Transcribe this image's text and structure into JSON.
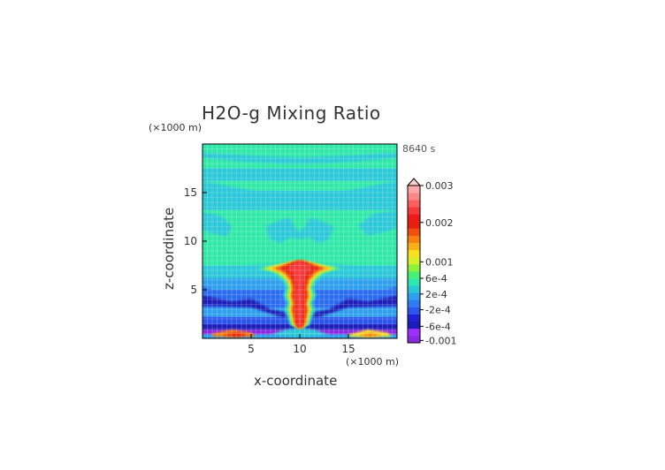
{
  "chart_data": {
    "type": "heatmap",
    "title": "H2O-g Mixing Ratio",
    "xlabel": "x-coordinate",
    "ylabel": "z-coordinate",
    "x_unit": "(×1000 m)",
    "y_unit": "(×1000 m)",
    "time_label": "8640 s",
    "xlim": [
      0,
      20
    ],
    "ylim": [
      0,
      20
    ],
    "x_ticks": [
      "5",
      "10",
      "15"
    ],
    "y_ticks": [
      "5",
      "10",
      "15"
    ],
    "grid": true,
    "colorbar": {
      "position": "right",
      "min_label": "-0.001",
      "max_label": "0.003",
      "tick_labels": [
        "0.003",
        "0.002",
        "0.001",
        "6e-4",
        "2e-4",
        "-2e-4",
        "-6e-4",
        "-0.001"
      ],
      "colors": [
        "#8a2be2",
        "#9b30ff",
        "#1c1cb8",
        "#2020d8",
        "#2c55ee",
        "#2f7cf2",
        "#2fa0ee",
        "#2bc8d8",
        "#2fe8b0",
        "#48f078",
        "#8cf23c",
        "#d8f028",
        "#f8e020",
        "#f8b018",
        "#f88010",
        "#f05010",
        "#e82010",
        "#ee1a1a",
        "#f43a3a",
        "#f86060",
        "#fa8888",
        "#fca8a8"
      ]
    },
    "field_description_levels": {
      "background": 0.0,
      "plume_core": 0.0022
    }
  }
}
